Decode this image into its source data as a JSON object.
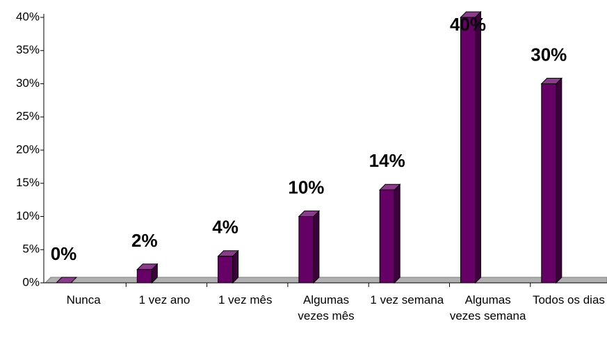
{
  "chart_data": {
    "type": "bar3d",
    "categories": [
      "Nunca",
      "1 vez ano",
      "1 vez mês",
      "Algumas vezes mês",
      "1 vez semana",
      "Algumas vezes semana",
      "Todos os dias"
    ],
    "values": [
      0,
      2,
      4,
      10,
      14,
      40,
      30
    ],
    "value_labels": [
      "0%",
      "2%",
      "4%",
      "10%",
      "14%",
      "40%",
      "30%"
    ],
    "color": "#660066",
    "ylim": [
      0,
      40
    ],
    "yticks": [
      {
        "value": 0,
        "label": "0%"
      },
      {
        "value": 5,
        "label": "5%"
      },
      {
        "value": 10,
        "label": "10%"
      },
      {
        "value": 15,
        "label": "15%"
      },
      {
        "value": 20,
        "label": "20%"
      },
      {
        "value": 25,
        "label": "25%"
      },
      {
        "value": 30,
        "label": "30%"
      },
      {
        "value": 35,
        "label": "35%"
      },
      {
        "value": 40,
        "label": "40%"
      }
    ]
  }
}
